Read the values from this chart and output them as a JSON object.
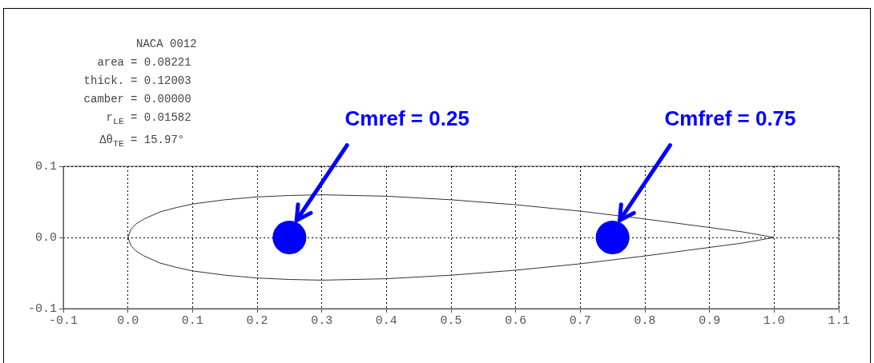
{
  "chart_data": {
    "type": "scatter",
    "title": "NACA 0012",
    "subtitle": "area = 0.08221\nthick. = 0.12003\ncamber = 0.00000\nr$_{LE}$ = 0.01582\nΔθ$_{TE}$ = 15.97°",
    "annotations": [
      {
        "text": "Cmref = 0.25",
        "x": 0.261,
        "y": 0.024
      },
      {
        "text": "Cmfref = 0.75",
        "x": 0.761,
        "y": 0.024
      }
    ],
    "series": [
      {
        "color": "#0000ff",
        "marker": "circle",
        "x": [
          0.25,
          0.75
        ],
        "values": [
          0,
          0
        ]
      }
    ],
    "xlim": [
      -0.1,
      1.1
    ],
    "xticks": [
      -0.1,
      {
        "value": 0,
        "label": "0.0"
      },
      0.1,
      0.2,
      0.3,
      0.4,
      0.5,
      0.6,
      0.7,
      0.8,
      0.9,
      {
        "value": 1,
        "label": "1.0"
      },
      1.1
    ],
    "ylim": [
      -0.1,
      0.1
    ],
    "yticks": [
      -0.1,
      {
        "value": 0,
        "label": "0.0"
      },
      0.1
    ],
    "grid": true
  }
}
